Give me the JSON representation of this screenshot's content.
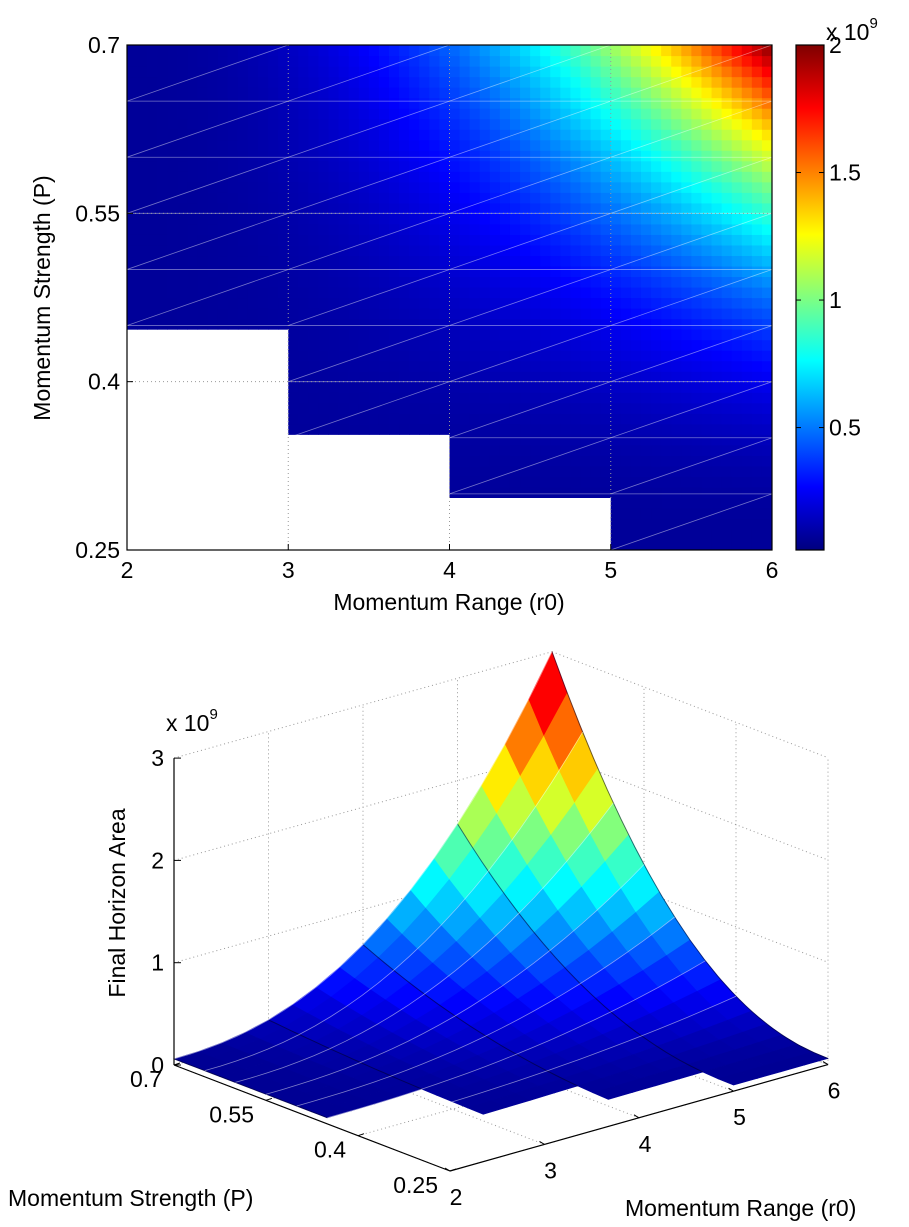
{
  "chart_data": [
    {
      "type": "heatmap",
      "xlabel": "Momentum Range (r0)",
      "ylabel": "Momentum Strength (P)",
      "x": [
        2,
        3,
        4,
        5,
        6
      ],
      "xlim": [
        2,
        6
      ],
      "ylim": [
        0.25,
        0.7
      ],
      "xticks": [
        "2",
        "3",
        "4",
        "5",
        "6"
      ],
      "yticks": [
        "0.25",
        "0.4",
        "0.55",
        "0.7"
      ],
      "y_grid": [
        0.25,
        0.3,
        0.35,
        0.4,
        0.45,
        0.5,
        0.55,
        0.6,
        0.65,
        0.7
      ],
      "p_min_by_r0": [
        0.45,
        0.35,
        0.3,
        0.25,
        0.25
      ],
      "colormap": "jet",
      "colorbar": {
        "ticks": [
          "0.5",
          "1",
          "1.5",
          "2"
        ],
        "tick_values": [
          0.5,
          1,
          1.5,
          2
        ],
        "exponent": "x 10",
        "exponent_power": "9",
        "range": [
          0.02,
          2.0
        ]
      },
      "grid": true
    },
    {
      "type": "surface3d",
      "xlabel": "Momentum Range (r0)",
      "ylabel": "Momentum Strength (P)",
      "zlabel": "Final Horizon Area",
      "xticks": [
        "2",
        "3",
        "4",
        "5",
        "6"
      ],
      "yticks": [
        "0.25",
        "0.4",
        "0.55",
        "0.7"
      ],
      "zticks": [
        "0",
        "1",
        "2",
        "3"
      ],
      "zlim": [
        0,
        3
      ],
      "z_exponent": "x 10",
      "z_exponent_power": "9",
      "z_max": 3.0,
      "colormap": "jet",
      "grid": true
    }
  ]
}
